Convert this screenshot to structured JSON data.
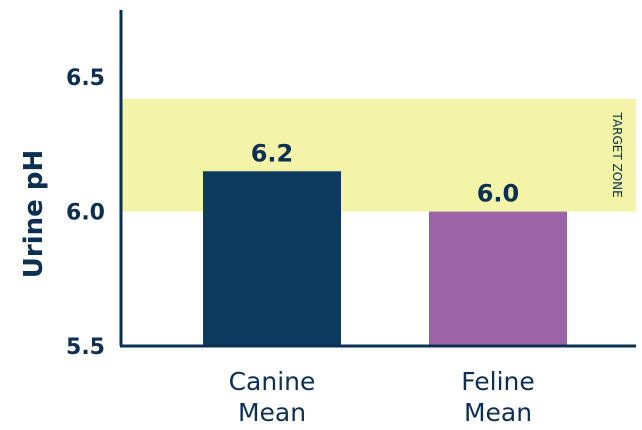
{
  "chart_data": {
    "type": "bar",
    "categories": [
      [
        "Canine",
        "Mean"
      ],
      [
        "Feline",
        "Mean"
      ]
    ],
    "values": [
      6.15,
      6.0
    ],
    "value_labels": [
      "6.2",
      "6.0"
    ],
    "bar_colors": [
      "#0d3a5f",
      "#9b64a6"
    ],
    "ylabel": "Urine pH",
    "ylim": [
      5.5,
      6.75
    ],
    "yticks": [
      {
        "value": 5.5,
        "label": "5.5"
      },
      {
        "value": 6.0,
        "label": "6.0"
      },
      {
        "value": 6.5,
        "label": "6.5"
      }
    ],
    "target_zone": {
      "from": 6.0,
      "to": 6.42,
      "label": "TARGET ZONE",
      "color": "#f3f4a8"
    },
    "grid": false,
    "axis_color": "#0d2f52"
  }
}
